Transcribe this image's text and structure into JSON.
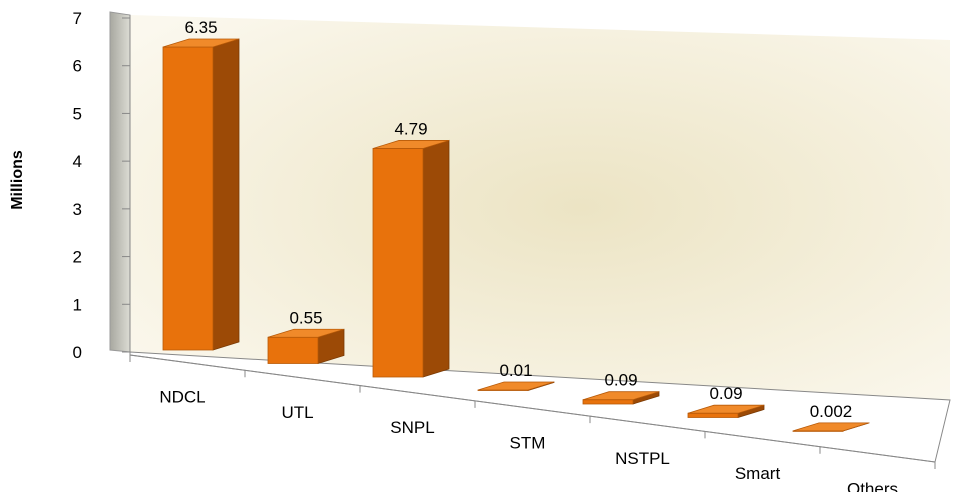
{
  "chart_data": {
    "type": "bar3d",
    "y_label": "Millions",
    "categories": [
      "NDCL",
      "UTL",
      "SNPL",
      "STM",
      "NSTPL",
      "Smart",
      "Others"
    ],
    "values": [
      6.35,
      0.55,
      4.79,
      0.01,
      0.09,
      0.09,
      0.002
    ],
    "color": "#e8720c",
    "ylim": [
      0,
      7
    ],
    "yticks": [
      0,
      1,
      2,
      3,
      4,
      5,
      6,
      7
    ]
  }
}
